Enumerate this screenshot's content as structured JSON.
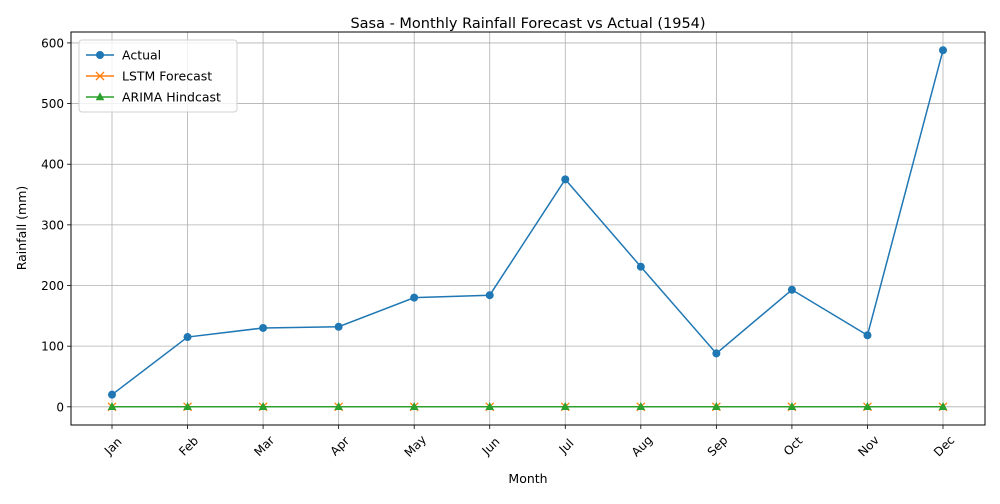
{
  "chart_data": {
    "type": "line",
    "title": "Sasa - Monthly Rainfall Forecast vs Actual (1954)",
    "xlabel": "Month",
    "ylabel": "Rainfall (mm)",
    "categories": [
      "Jan",
      "Feb",
      "Mar",
      "Apr",
      "May",
      "Jun",
      "Jul",
      "Aug",
      "Sep",
      "Oct",
      "Nov",
      "Dec"
    ],
    "ylim": [
      -30,
      618
    ],
    "yticks": [
      0,
      100,
      200,
      300,
      400,
      500,
      600
    ],
    "grid": true,
    "legend_position": "top-left",
    "series": [
      {
        "name": "Actual",
        "marker": "circle",
        "color": "#1f77b4",
        "values": [
          20,
          115,
          130,
          132,
          180,
          184,
          375,
          231,
          88,
          193,
          118,
          588
        ]
      },
      {
        "name": "LSTM Forecast",
        "marker": "x",
        "color": "#ff7f0e",
        "values": [
          0,
          0,
          0,
          0,
          0,
          0,
          0,
          0,
          0,
          0,
          0,
          0
        ]
      },
      {
        "name": "ARIMA Hindcast",
        "marker": "triangle",
        "color": "#2ca02c",
        "values": [
          0,
          0,
          0,
          0,
          0,
          0,
          0,
          0,
          0,
          0,
          0,
          0
        ]
      }
    ]
  }
}
